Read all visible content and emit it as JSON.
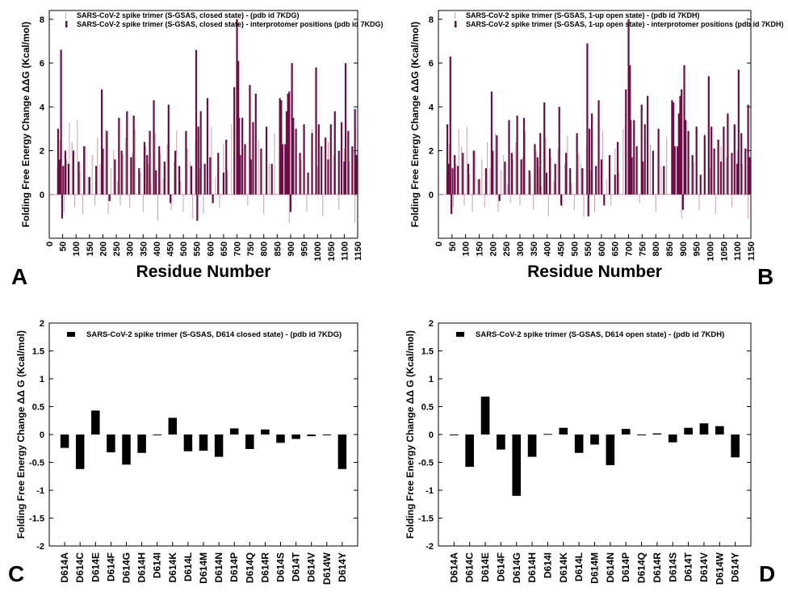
{
  "chart_data": [
    {
      "panel": "A",
      "type": "bar",
      "ylabel": "Folding Free Energy Change ΔΔG (Kcal/mol)",
      "xlabel": "Residue Number",
      "xlim": [
        0,
        1150
      ],
      "ylim": [
        -2,
        8.4
      ],
      "xticks": [
        0,
        50,
        100,
        150,
        200,
        250,
        300,
        350,
        400,
        450,
        500,
        550,
        600,
        650,
        700,
        750,
        800,
        850,
        900,
        950,
        1000,
        1050,
        1100,
        1150
      ],
      "yticks": [
        0,
        2,
        4,
        6,
        8
      ],
      "series": [
        {
          "name": "SARS-CoV-2 spike  trimer (S-GSAS, closed state) -   (pdb id 7KDG)",
          "color": "#c9a0a6",
          "style": "thin",
          "x": [
            30,
            40,
            55,
            65,
            75,
            85,
            95,
            105,
            115,
            125,
            135,
            145,
            160,
            170,
            180,
            190,
            210,
            220,
            230,
            240,
            255,
            265,
            275,
            285,
            300,
            310,
            320,
            340,
            350,
            360,
            370,
            380,
            395,
            405,
            415,
            425,
            440,
            455,
            465,
            475,
            490,
            500,
            515,
            525,
            535,
            545,
            560,
            575,
            590,
            605,
            620,
            635,
            650,
            665,
            680,
            720,
            740,
            760,
            780,
            800,
            820,
            840,
            870,
            895,
            920,
            940,
            960,
            980,
            1000,
            1020,
            1040,
            1060,
            1080,
            1100,
            1120,
            1140
          ],
          "values": [
            1.2,
            2.5,
            -0.8,
            1.6,
            3.3,
            2.4,
            -0.6,
            3.4,
            1.0,
            -0.9,
            2.2,
            0.8,
            1.8,
            -0.5,
            2.6,
            1.4,
            3.0,
            -0.9,
            1.2,
            2.0,
            0.6,
            -0.5,
            1.8,
            2.6,
            -0.6,
            1.9,
            3.0,
            1.0,
            -0.8,
            2.2,
            1.4,
            0.5,
            2.8,
            -1.2,
            1.9,
            0.7,
            2.3,
            -0.7,
            1.5,
            2.9,
            0.6,
            -0.8,
            2.1,
            1.5,
            -1.1,
            2.4,
            1.2,
            -0.9,
            2.0,
            3.1,
            0.8,
            -0.6,
            2.3,
            1.1,
            3.2,
            2.1,
            -0.5,
            1.7,
            2.5,
            -0.9,
            1.4,
            2.8,
            0.9,
            -1.3,
            2.2,
            1.6,
            -0.8,
            3.0,
            1.3,
            -1.0,
            2.4,
            1.8,
            -0.7,
            2.1,
            1.5,
            -1.3
          ]
        },
        {
          "name": "SARS-CoV-2 spike trimer (S-GSAS, closed state) - interprotomer positions (pdb id 7KDG)",
          "color": "#6a0f45",
          "style": "thick",
          "x": [
            33,
            38,
            44,
            48,
            52,
            60,
            72,
            90,
            110,
            130,
            150,
            175,
            196,
            200,
            215,
            225,
            245,
            260,
            270,
            290,
            305,
            315,
            335,
            355,
            365,
            375,
            390,
            398,
            410,
            430,
            445,
            452,
            470,
            485,
            510,
            530,
            548,
            552,
            556,
            565,
            580,
            590,
            600,
            610,
            630,
            650,
            660,
            690,
            700,
            705,
            708,
            712,
            720,
            730,
            748,
            752,
            760,
            770,
            790,
            810,
            830,
            860,
            865,
            870,
            880,
            885,
            890,
            895,
            900,
            905,
            910,
            920,
            935,
            950,
            965,
            980,
            995,
            1005,
            1015,
            1030,
            1040,
            1050,
            1065,
            1080,
            1090,
            1100,
            1105,
            1115,
            1130,
            1140,
            1145
          ],
          "values": [
            3.0,
            1.6,
            6.6,
            -1.1,
            1.3,
            2.0,
            1.4,
            2.0,
            1.5,
            2.2,
            0.8,
            1.3,
            4.8,
            2.1,
            2.9,
            -0.3,
            1.6,
            3.5,
            2.0,
            3.8,
            1.7,
            3.6,
            1.2,
            2.4,
            1.8,
            2.9,
            4.3,
            1.1,
            2.2,
            1.5,
            4.1,
            -0.4,
            2.0,
            1.3,
            2.9,
            1.3,
            6.6,
            -1.2,
            3.1,
            3.8,
            1.4,
            4.4,
            1.7,
            -0.4,
            1.9,
            1.0,
            2.5,
            4.9,
            8.0,
            6.1,
            3.5,
            1.8,
            3.5,
            2.3,
            5.0,
            1.6,
            3.3,
            4.6,
            2.1,
            3.1,
            1.4,
            4.4,
            4.3,
            2.3,
            2.3,
            3.8,
            4.6,
            4.7,
            -0.8,
            6.0,
            3.5,
            3.0,
            1.9,
            3.2,
            1.0,
            2.8,
            5.8,
            3.2,
            2.2,
            2.6,
            1.6,
            3.2,
            3.8,
            2.0,
            3.3,
            1.5,
            6.0,
            2.9,
            2.2,
            3.9,
            1.8
          ]
        }
      ],
      "legend": "top-left"
    },
    {
      "panel": "B",
      "type": "bar",
      "ylabel": "Folding Free Energy Change ΔΔG (Kcal/mol)",
      "xlabel": "Residue Number",
      "xlim": [
        0,
        1150
      ],
      "ylim": [
        -2,
        8.4
      ],
      "xticks": [
        0,
        50,
        100,
        150,
        200,
        250,
        300,
        350,
        400,
        450,
        500,
        550,
        600,
        650,
        700,
        750,
        800,
        850,
        900,
        950,
        1000,
        1050,
        1100,
        1150
      ],
      "yticks": [
        0,
        2,
        4,
        6,
        8
      ],
      "series": [
        {
          "name": "SARS-CoV-2 spike  trimer (S-GSAS, 1-up open state) -   (pdb id 7KDH)",
          "color": "#c9a0a6",
          "style": "thin",
          "x": [
            30,
            40,
            55,
            65,
            75,
            85,
            95,
            105,
            115,
            125,
            135,
            145,
            160,
            170,
            180,
            190,
            210,
            220,
            230,
            240,
            255,
            265,
            275,
            285,
            300,
            310,
            320,
            340,
            350,
            360,
            370,
            380,
            395,
            405,
            415,
            425,
            440,
            455,
            465,
            475,
            490,
            500,
            515,
            525,
            535,
            545,
            560,
            575,
            590,
            605,
            620,
            635,
            650,
            665,
            680,
            720,
            740,
            760,
            780,
            800,
            820,
            840,
            870,
            895,
            920,
            940,
            960,
            980,
            1000,
            1020,
            1040,
            1060,
            1080,
            1100,
            1120,
            1140
          ],
          "values": [
            1.0,
            2.3,
            -0.6,
            1.4,
            3.0,
            2.2,
            -0.5,
            3.1,
            0.9,
            -0.8,
            2.0,
            0.7,
            1.6,
            -0.6,
            2.4,
            1.2,
            2.8,
            -0.8,
            1.1,
            1.8,
            0.5,
            -0.4,
            1.6,
            2.4,
            -0.5,
            1.7,
            2.9,
            0.9,
            -0.7,
            2.0,
            1.3,
            0.4,
            2.6,
            -1.0,
            1.7,
            0.6,
            2.1,
            -0.6,
            1.4,
            2.7,
            0.5,
            -0.7,
            1.9,
            1.4,
            -1.0,
            2.2,
            1.1,
            -0.8,
            1.9,
            2.9,
            0.7,
            -0.5,
            2.1,
            1.0,
            3.0,
            2.0,
            -0.4,
            1.6,
            2.3,
            -0.8,
            1.3,
            2.6,
            0.8,
            -1.1,
            2.0,
            1.5,
            -0.7,
            2.8,
            1.2,
            -0.9,
            2.2,
            1.7,
            -0.6,
            2.0,
            1.4,
            -1.1
          ]
        },
        {
          "name": "SARS-CoV-2 spike trimer (S-GSAS, 1-up open state) - interprotomer positions (pdb id 7KDH)",
          "color": "#6a0f45",
          "style": "thick",
          "x": [
            33,
            38,
            44,
            48,
            52,
            60,
            72,
            90,
            110,
            130,
            150,
            175,
            196,
            200,
            215,
            225,
            245,
            260,
            270,
            290,
            305,
            315,
            335,
            355,
            365,
            375,
            390,
            398,
            410,
            430,
            445,
            452,
            470,
            485,
            510,
            530,
            548,
            552,
            556,
            565,
            580,
            590,
            600,
            610,
            630,
            650,
            660,
            690,
            700,
            705,
            708,
            712,
            720,
            730,
            748,
            752,
            760,
            770,
            790,
            810,
            830,
            860,
            865,
            870,
            880,
            885,
            890,
            895,
            900,
            905,
            910,
            920,
            935,
            950,
            965,
            980,
            995,
            1005,
            1015,
            1030,
            1040,
            1050,
            1065,
            1080,
            1090,
            1100,
            1105,
            1115,
            1130,
            1140,
            1145
          ],
          "values": [
            3.2,
            1.4,
            6.3,
            -0.9,
            1.2,
            1.8,
            1.3,
            1.9,
            1.4,
            2.0,
            0.7,
            1.2,
            4.7,
            2.0,
            2.7,
            -0.3,
            1.5,
            3.4,
            1.9,
            3.6,
            1.6,
            3.5,
            1.1,
            2.3,
            1.7,
            2.8,
            4.2,
            1.0,
            2.1,
            1.4,
            4.0,
            -0.5,
            1.9,
            1.2,
            2.8,
            1.2,
            6.9,
            -1.0,
            3.0,
            3.7,
            1.3,
            4.3,
            1.6,
            -0.5,
            1.8,
            0.9,
            2.4,
            4.8,
            8.0,
            5.9,
            3.4,
            1.7,
            3.4,
            2.2,
            4.1,
            1.5,
            3.2,
            4.5,
            2.0,
            3.0,
            1.3,
            4.3,
            4.2,
            2.2,
            2.2,
            3.7,
            4.5,
            4.8,
            -0.7,
            5.9,
            3.4,
            2.9,
            1.8,
            3.1,
            0.9,
            2.7,
            5.4,
            3.1,
            2.1,
            2.5,
            1.5,
            3.1,
            3.7,
            1.9,
            3.2,
            1.4,
            5.7,
            2.8,
            2.1,
            4.1,
            1.7
          ]
        }
      ],
      "legend": "top-left"
    },
    {
      "panel": "C",
      "type": "bar",
      "ylabel": "Folding Free Energy Change ΔΔ G (Kcal/mol)",
      "xlabel": "",
      "ylim": [
        -2,
        2
      ],
      "yticks": [
        -2,
        -1.5,
        -1,
        -0.5,
        0,
        0.5,
        1,
        1.5,
        2
      ],
      "ytick_labels": [
        "-2",
        "-1.5",
        "-1",
        "-0.5",
        "0",
        "0.5",
        "1",
        "1.5",
        "2"
      ],
      "categories": [
        "D614A",
        "D614C",
        "D614E",
        "D614F",
        "D614G",
        "D614H",
        "D614I",
        "D614K",
        "D614L",
        "D614M",
        "D614N",
        "D614P",
        "D614Q",
        "D614R",
        "D614S",
        "D614T",
        "D614V",
        "D614W",
        "D614Y"
      ],
      "series": [
        {
          "name": "SARS-CoV-2 spike trimer  (S-GSAS, D614 closed state) - (pdb id 7KDG)",
          "color": "#000000",
          "values": [
            -0.24,
            -0.62,
            0.43,
            -0.32,
            -0.54,
            -0.33,
            -0.01,
            0.3,
            -0.3,
            -0.29,
            -0.4,
            0.11,
            -0.26,
            0.09,
            -0.15,
            -0.08,
            -0.03,
            0.0,
            -0.62
          ]
        }
      ],
      "legend": "top-left"
    },
    {
      "panel": "D",
      "type": "bar",
      "ylabel": "Folding Free Energy Change ΔΔ G (Kcal/mol)",
      "xlabel": "",
      "ylim": [
        -2,
        2
      ],
      "yticks": [
        -2,
        -1.5,
        -1,
        -0.5,
        0,
        0.5,
        1,
        1.5,
        2
      ],
      "ytick_labels": [
        "-2",
        "-1.5",
        "-1",
        "-0.5",
        "0",
        "0.5",
        "1",
        "1.5",
        "2"
      ],
      "categories": [
        "D614A",
        "D614C",
        "D614E",
        "D614F",
        "D614G",
        "D614H",
        "D614I",
        "D614K",
        "D614L",
        "D614M",
        "D614N",
        "D614P",
        "D614Q",
        "D614R",
        "D614S",
        "D614T",
        "D614V",
        "D614W",
        "D614Y"
      ],
      "series": [
        {
          "name": "SARS-CoV-2 spike trimer  (S-GSAS, D614 open state) - (pdb id 7KDH)",
          "color": "#000000",
          "values": [
            -0.01,
            -0.58,
            0.68,
            -0.27,
            -1.1,
            -0.4,
            0.01,
            0.12,
            -0.33,
            -0.18,
            -0.55,
            0.1,
            -0.01,
            0.02,
            -0.14,
            0.12,
            0.2,
            0.15,
            -0.41
          ]
        }
      ],
      "legend": "top-left"
    }
  ],
  "panel_letters": [
    "A",
    "B",
    "C",
    "D"
  ]
}
